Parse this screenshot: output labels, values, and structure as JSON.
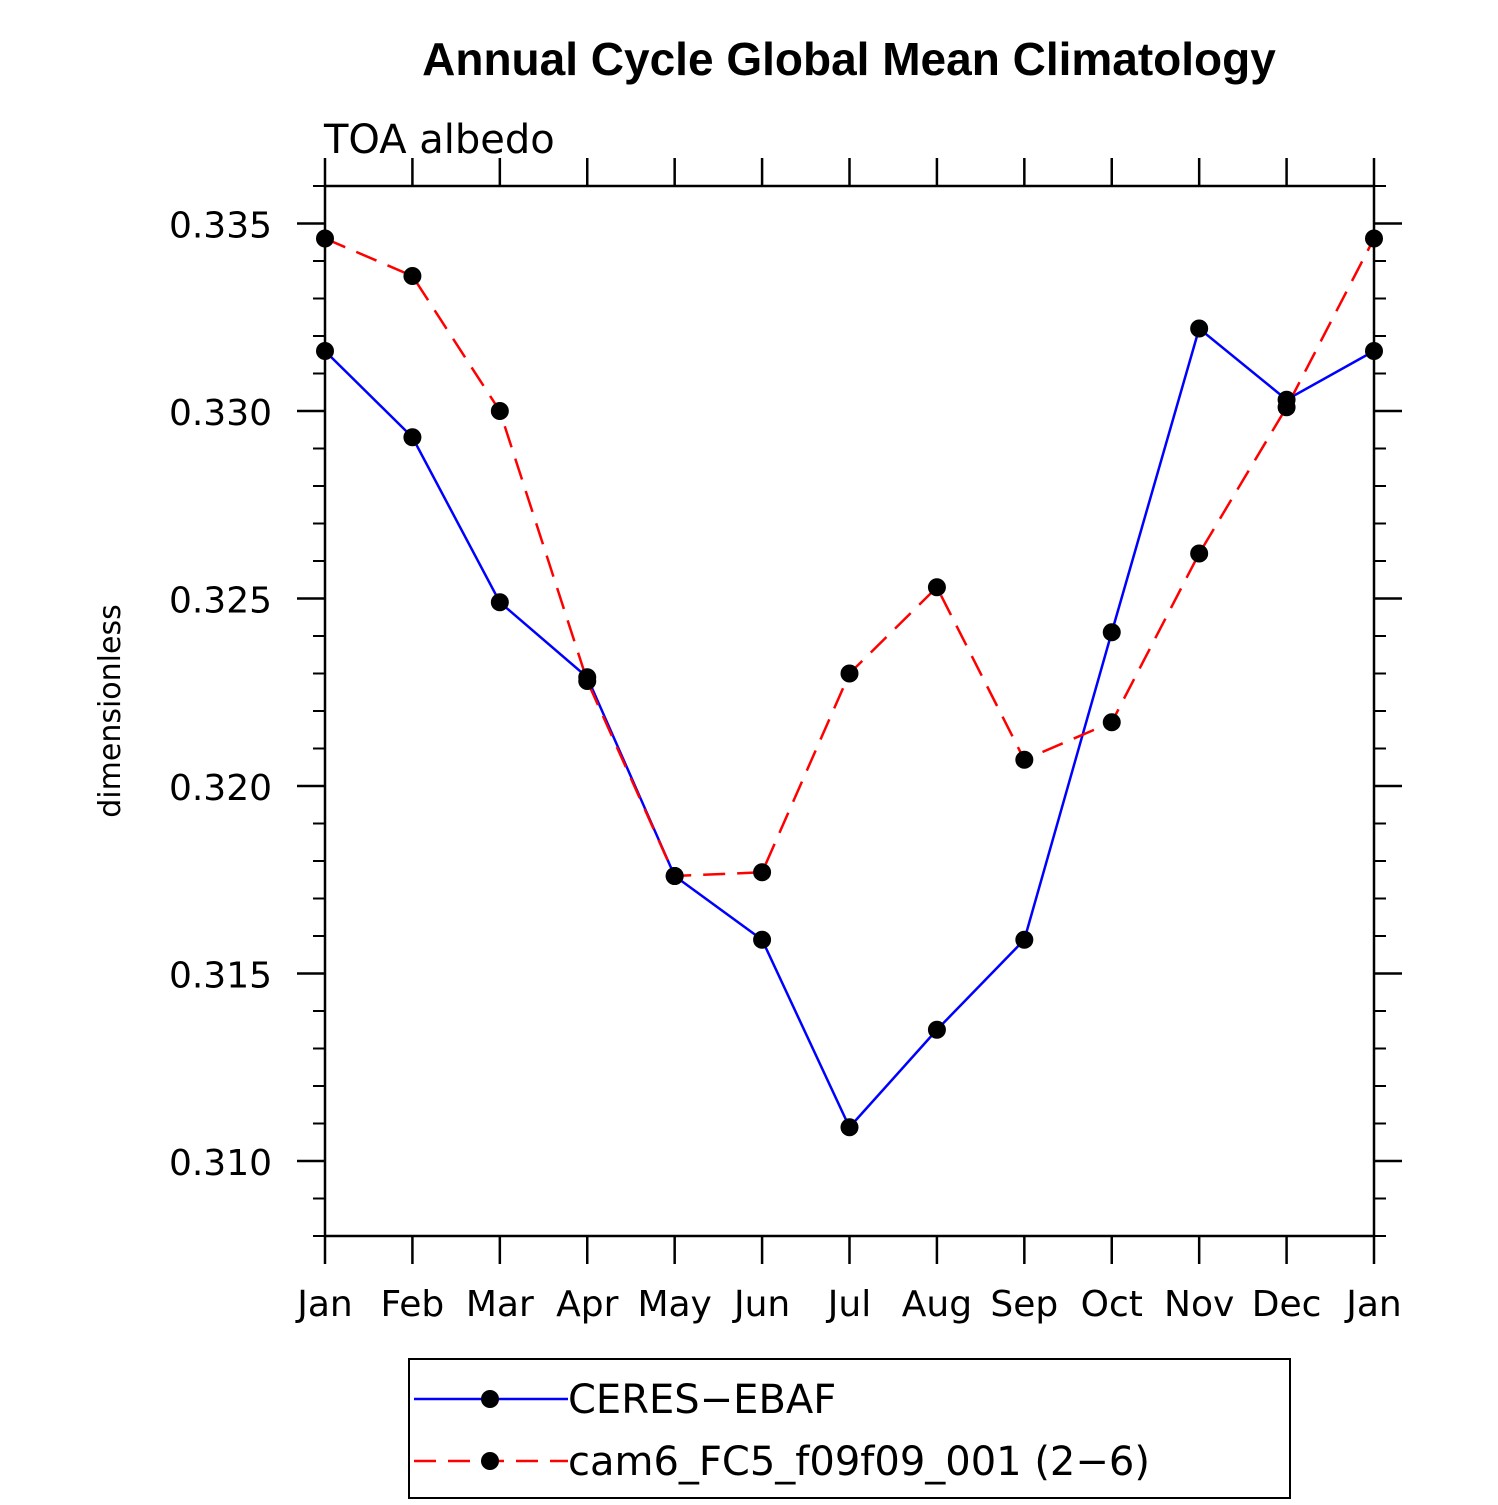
{
  "chart_data": {
    "type": "line",
    "title": "Annual Cycle Global Mean Climatology",
    "subtitle": "TOA albedo",
    "xlabel": "",
    "ylabel": "dimensionless",
    "categories": [
      "Jan",
      "Feb",
      "Mar",
      "Apr",
      "May",
      "Jun",
      "Jul",
      "Aug",
      "Sep",
      "Oct",
      "Nov",
      "Dec",
      "Jan"
    ],
    "ylim": [
      0.308,
      0.336
    ],
    "yticks": [
      "0.310",
      "0.315",
      "0.320",
      "0.325",
      "0.330",
      "0.335"
    ],
    "legend_position": "bottom",
    "series": [
      {
        "name": "CERES−EBAF",
        "color": "#0000ff",
        "dash": "solid",
        "values": [
          0.3316,
          0.3293,
          0.3249,
          0.3229,
          0.3176,
          0.3159,
          0.3109,
          0.3135,
          0.3159,
          0.3241,
          0.3322,
          0.3303,
          0.3316
        ]
      },
      {
        "name": "cam6_FC5_f09f09_001 (2−6)",
        "color": "#ff0000",
        "dash": "dashed",
        "values": [
          0.3346,
          0.3336,
          0.33,
          0.3228,
          0.3176,
          0.3177,
          0.323,
          0.3253,
          0.3207,
          0.3217,
          0.3262,
          0.3301,
          0.3346
        ]
      }
    ]
  }
}
